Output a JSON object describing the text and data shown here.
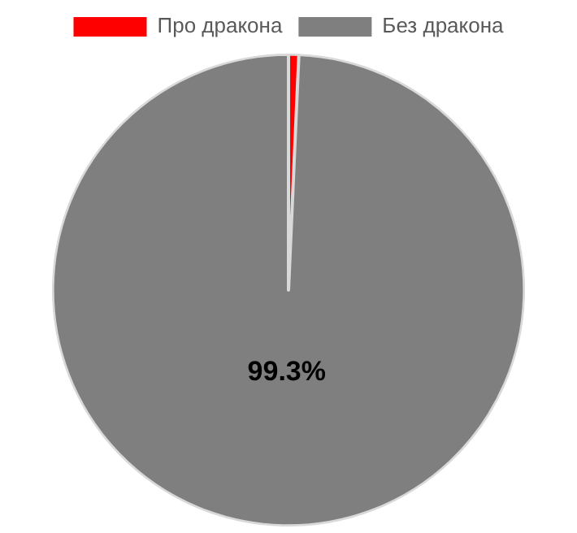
{
  "chart_data": {
    "type": "pie",
    "categories": [
      "Про дракона",
      "Без дракона"
    ],
    "values": [
      0.7,
      99.3
    ],
    "colors": [
      "#ff0000",
      "#7f7f7f"
    ],
    "value_labels": [
      null,
      "99.3%"
    ],
    "legend": "top"
  }
}
